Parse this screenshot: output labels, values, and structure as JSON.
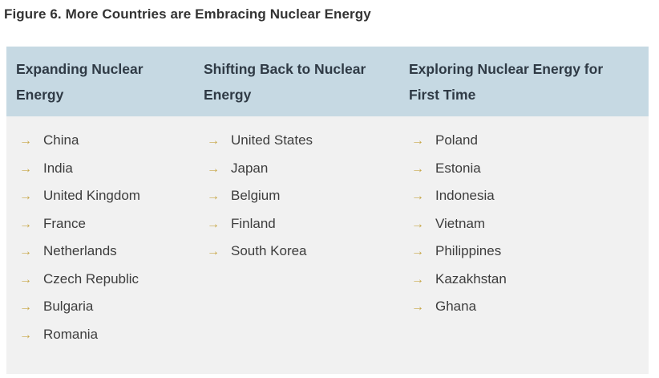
{
  "figure": {
    "title": "Figure 6. More Countries are Embracing Nuclear Energy"
  },
  "colors": {
    "header_band": "#c6d9e3",
    "body_bg": "#f1f1f1",
    "arrow": "#c8a84a"
  },
  "columns": [
    {
      "heading_line1": "Expanding Nuclear",
      "heading_line2": "Energy",
      "items": [
        "China",
        "India",
        "United Kingdom",
        "France",
        "Netherlands",
        "Czech Republic",
        "Bulgaria",
        "Romania"
      ]
    },
    {
      "heading_line1": "Shifting Back to Nuclear",
      "heading_line2": "Energy",
      "items": [
        "United States",
        "Japan",
        "Belgium",
        "Finland",
        "South Korea"
      ]
    },
    {
      "heading_line1": "Exploring Nuclear Energy for",
      "heading_line2": "First Time",
      "items": [
        "Poland",
        "Estonia",
        "Indonesia",
        "Vietnam",
        "Philippines",
        "Kazakhstan",
        "Ghana"
      ]
    }
  ],
  "bullet_icon": "arrow-right-icon"
}
